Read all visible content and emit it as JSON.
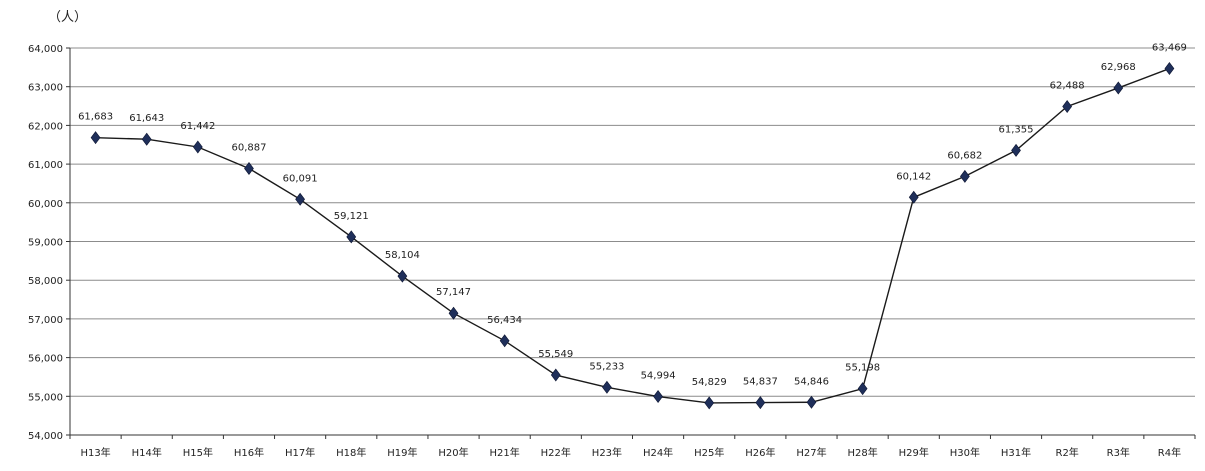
{
  "chart_data": {
    "type": "line",
    "unit_label": "（人）",
    "categories": [
      "H13年",
      "H14年",
      "H15年",
      "H16年",
      "H17年",
      "H18年",
      "H19年",
      "H20年",
      "H21年",
      "H22年",
      "H23年",
      "H24年",
      "H25年",
      "H26年",
      "H27年",
      "H28年",
      "H29年",
      "H30年",
      "H31年",
      "R2年",
      "R3年",
      "R4年"
    ],
    "values": [
      61683,
      61643,
      61442,
      60887,
      60091,
      59121,
      58104,
      57147,
      56434,
      55549,
      55233,
      54994,
      54829,
      54837,
      54846,
      55198,
      60142,
      60682,
      61355,
      62488,
      62968,
      63469
    ],
    "data_labels": [
      "61,683",
      "61,643",
      "61,442",
      "60,887",
      "60,091",
      "59,121",
      "58,104",
      "57,147",
      "56,434",
      "55,549",
      "55,233",
      "54,994",
      "54,829",
      "54,837",
      "54,846",
      "55,198",
      "60,142",
      "60,682",
      "61,355",
      "62,488",
      "62,968",
      "63,469"
    ],
    "y_ticks": [
      "54,000",
      "55,000",
      "56,000",
      "57,000",
      "58,000",
      "59,000",
      "60,000",
      "61,000",
      "62,000",
      "63,000",
      "64,000"
    ],
    "ylim": [
      54000,
      64000
    ],
    "grid": true,
    "legend": "none",
    "colors": {
      "line": "#1a1a1a",
      "marker": "#1f2f5a",
      "grid": "#8c8c8c",
      "axis": "#333333"
    }
  }
}
